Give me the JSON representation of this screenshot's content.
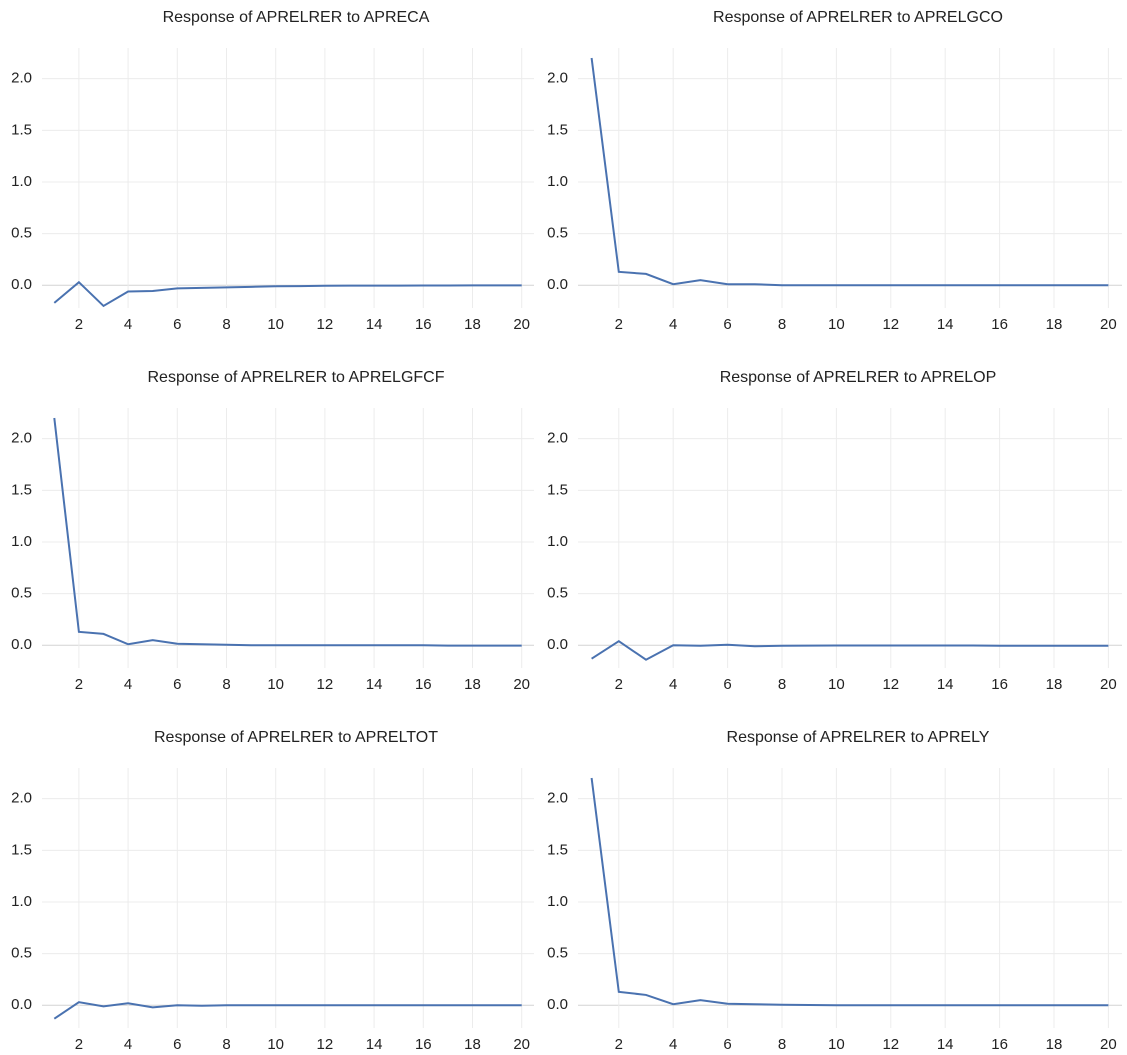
{
  "chart_data": [
    {
      "type": "line",
      "title": "Response of APRELRER to APRECA",
      "color": "#4a72b0",
      "grid": true,
      "x": [
        1,
        2,
        3,
        4,
        5,
        6,
        7,
        8,
        9,
        10,
        11,
        12,
        13,
        14,
        15,
        16,
        17,
        18,
        19,
        20
      ],
      "values": [
        -0.17,
        0.03,
        -0.2,
        -0.06,
        -0.055,
        -0.03,
        -0.025,
        -0.02,
        -0.015,
        -0.01,
        -0.008,
        -0.005,
        -0.004,
        -0.003,
        -0.003,
        -0.002,
        -0.002,
        -0.001,
        -0.001,
        -0.001
      ],
      "xlim": [
        0.5,
        20.5
      ],
      "xticks": [
        2,
        4,
        6,
        8,
        10,
        12,
        14,
        16,
        18,
        20
      ],
      "ylim": [
        -0.22,
        2.2
      ],
      "yticks": [
        {
          "value": 0,
          "label": "0.0"
        },
        0.5,
        {
          "value": 1,
          "label": "1.0"
        },
        1.5,
        {
          "value": 2,
          "label": "2.0"
        }
      ]
    },
    {
      "type": "line",
      "title": "Response of APRELRER to APRELGCO",
      "color": "#4a72b0",
      "grid": true,
      "x": [
        1,
        2,
        3,
        4,
        5,
        6,
        7,
        8,
        9,
        10,
        11,
        12,
        13,
        14,
        15,
        16,
        17,
        18,
        19,
        20
      ],
      "values": [
        2.2,
        0.13,
        0.11,
        0.01,
        0.05,
        0.01,
        0.01,
        0.0,
        0.0,
        0.0,
        0.0,
        0.0,
        0.0,
        0.0,
        0.0,
        0.0,
        0.0,
        0.0,
        0.0,
        0.0
      ],
      "xlim": [
        0.5,
        20.5
      ],
      "xticks": [
        2,
        4,
        6,
        8,
        10,
        12,
        14,
        16,
        18,
        20
      ],
      "ylim": [
        -0.22,
        2.2
      ],
      "yticks": [
        {
          "value": 0,
          "label": "0.0"
        },
        0.5,
        {
          "value": 1,
          "label": "1.0"
        },
        1.5,
        {
          "value": 2,
          "label": "2.0"
        }
      ]
    },
    {
      "type": "line",
      "title": "Response of APRELRER to APRELGFCF",
      "color": "#4a72b0",
      "grid": true,
      "x": [
        1,
        2,
        3,
        4,
        5,
        6,
        7,
        8,
        9,
        10,
        11,
        12,
        13,
        14,
        15,
        16,
        17,
        18,
        19,
        20
      ],
      "values": [
        2.2,
        0.13,
        0.11,
        0.01,
        0.05,
        0.015,
        0.01,
        0.005,
        0.0,
        0.0,
        0.0,
        0.0,
        0.0,
        0.0,
        0.0,
        0.0,
        -0.003,
        -0.003,
        -0.003,
        -0.003
      ],
      "xlim": [
        0.5,
        20.5
      ],
      "xticks": [
        2,
        4,
        6,
        8,
        10,
        12,
        14,
        16,
        18,
        20
      ],
      "ylim": [
        -0.22,
        2.2
      ],
      "yticks": [
        {
          "value": 0,
          "label": "0.0"
        },
        0.5,
        {
          "value": 1,
          "label": "1.0"
        },
        1.5,
        {
          "value": 2,
          "label": "2.0"
        }
      ]
    },
    {
      "type": "line",
      "title": "Response of APRELRER to APRELOP",
      "color": "#4a72b0",
      "grid": true,
      "x": [
        1,
        2,
        3,
        4,
        5,
        6,
        7,
        8,
        9,
        10,
        11,
        12,
        13,
        14,
        15,
        16,
        17,
        18,
        19,
        20
      ],
      "values": [
        -0.13,
        0.04,
        -0.14,
        0.0,
        -0.005,
        0.005,
        -0.01,
        -0.005,
        -0.003,
        -0.002,
        -0.002,
        -0.002,
        -0.002,
        -0.002,
        -0.002,
        -0.005,
        -0.005,
        -0.005,
        -0.005,
        -0.005
      ],
      "xlim": [
        0.5,
        20.5
      ],
      "xticks": [
        2,
        4,
        6,
        8,
        10,
        12,
        14,
        16,
        18,
        20
      ],
      "ylim": [
        -0.22,
        2.2
      ],
      "yticks": [
        {
          "value": 0,
          "label": "0.0"
        },
        0.5,
        {
          "value": 1,
          "label": "1.0"
        },
        1.5,
        {
          "value": 2,
          "label": "2.0"
        }
      ]
    },
    {
      "type": "line",
      "title": "Response of APRELRER to APRELTOT",
      "color": "#4a72b0",
      "grid": true,
      "x": [
        1,
        2,
        3,
        4,
        5,
        6,
        7,
        8,
        9,
        10,
        11,
        12,
        13,
        14,
        15,
        16,
        17,
        18,
        19,
        20
      ],
      "values": [
        -0.13,
        0.03,
        -0.01,
        0.02,
        -0.02,
        0.0,
        -0.005,
        0.0,
        0.0,
        0.0,
        0.0,
        0.0,
        0.0,
        0.0,
        0.0,
        0.0,
        0.0,
        0.0,
        0.0,
        0.0
      ],
      "xlim": [
        0.5,
        20.5
      ],
      "xticks": [
        2,
        4,
        6,
        8,
        10,
        12,
        14,
        16,
        18,
        20
      ],
      "ylim": [
        -0.22,
        2.2
      ],
      "yticks": [
        {
          "value": 0,
          "label": "0.0"
        },
        0.5,
        {
          "value": 1,
          "label": "1.0"
        },
        1.5,
        {
          "value": 2,
          "label": "2.0"
        }
      ]
    },
    {
      "type": "line",
      "title": "Response of APRELRER to APRELY",
      "color": "#4a72b0",
      "grid": true,
      "x": [
        1,
        2,
        3,
        4,
        5,
        6,
        7,
        8,
        9,
        10,
        11,
        12,
        13,
        14,
        15,
        16,
        17,
        18,
        19,
        20
      ],
      "values": [
        2.2,
        0.13,
        0.1,
        0.01,
        0.05,
        0.015,
        0.01,
        0.005,
        0.003,
        0.0,
        0.0,
        0.0,
        0.0,
        0.0,
        0.0,
        0.0,
        0.0,
        0.0,
        0.0,
        0.0
      ],
      "xlim": [
        0.5,
        20.5
      ],
      "xticks": [
        2,
        4,
        6,
        8,
        10,
        12,
        14,
        16,
        18,
        20
      ],
      "ylim": [
        -0.22,
        2.2
      ],
      "yticks": [
        {
          "value": 0,
          "label": "0.0"
        },
        0.5,
        {
          "value": 1,
          "label": "1.0"
        },
        1.5,
        {
          "value": 2,
          "label": "2.0"
        }
      ]
    }
  ]
}
